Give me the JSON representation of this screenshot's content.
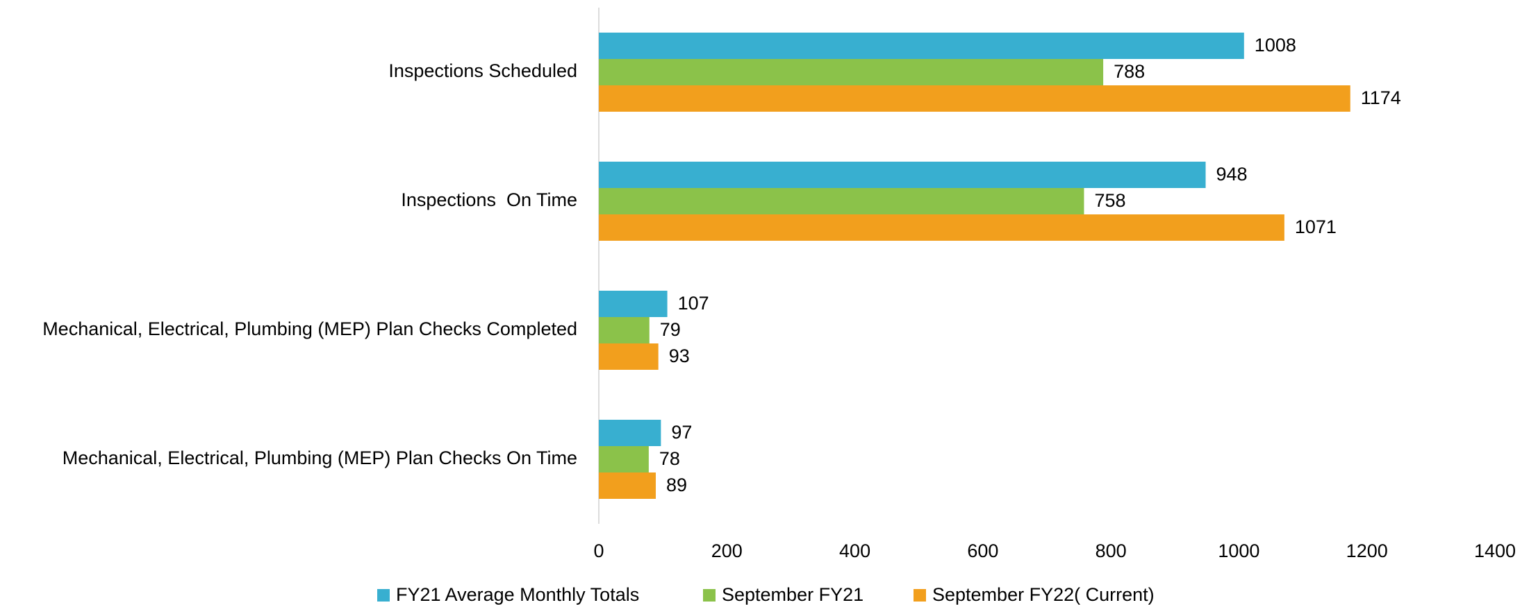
{
  "chart_data": {
    "type": "hbar",
    "categories": [
      "Inspections Scheduled",
      "Inspections  On Time",
      "Mechanical, Electrical, Plumbing (MEP) Plan Checks Completed",
      "Mechanical, Electrical, Plumbing (MEP) Plan Checks On Time"
    ],
    "series": [
      {
        "name": "FY21 Average Monthly Totals",
        "color": "#38afd0",
        "values": [
          1008,
          948,
          107,
          97
        ]
      },
      {
        "name": "September FY21",
        "color": "#8bc24a",
        "values": [
          788,
          758,
          79,
          78
        ]
      },
      {
        "name": "September FY22( Current)",
        "color": "#f29f1d",
        "values": [
          1174,
          1071,
          93,
          89
        ]
      }
    ],
    "xlim": [
      0,
      1400
    ],
    "xticks": [
      0,
      200,
      400,
      600,
      800,
      1000,
      1200,
      1400
    ],
    "legend": "bottom"
  }
}
